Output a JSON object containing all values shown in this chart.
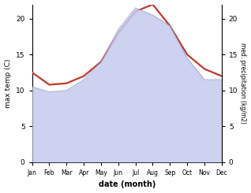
{
  "months": [
    "Jan",
    "Feb",
    "Mar",
    "Apr",
    "May",
    "Jun",
    "Jul",
    "Aug",
    "Sep",
    "Oct",
    "Nov",
    "Dec"
  ],
  "month_indices": [
    0,
    1,
    2,
    3,
    4,
    5,
    6,
    7,
    8,
    9,
    10,
    11
  ],
  "max_temp": [
    12.5,
    10.8,
    11.0,
    12.0,
    14.0,
    18.0,
    21.0,
    22.0,
    19.0,
    15.0,
    13.0,
    12.0
  ],
  "precipitation": [
    10.5,
    9.8,
    10.0,
    11.5,
    14.0,
    18.5,
    21.5,
    20.5,
    19.0,
    14.5,
    11.5,
    11.5
  ],
  "temp_color": "#c0392b",
  "precip_fill_color": "#c5caee",
  "precip_line_color": "#9099cc",
  "precip_fill_alpha": 0.85,
  "xlabel": "date (month)",
  "ylabel_left": "max temp (C)",
  "ylabel_right": "med. precipitation (kg/m2)",
  "ylim_left": [
    0,
    22
  ],
  "ylim_right": [
    0,
    22
  ],
  "yticks_left": [
    0,
    5,
    10,
    15,
    20
  ],
  "yticks_right": [
    0,
    5,
    10,
    15,
    20
  ],
  "background_color": "#ffffff",
  "temp_linewidth": 1.6,
  "precip_linewidth": 1.0,
  "figsize": [
    3.18,
    2.45
  ],
  "dpi": 100
}
